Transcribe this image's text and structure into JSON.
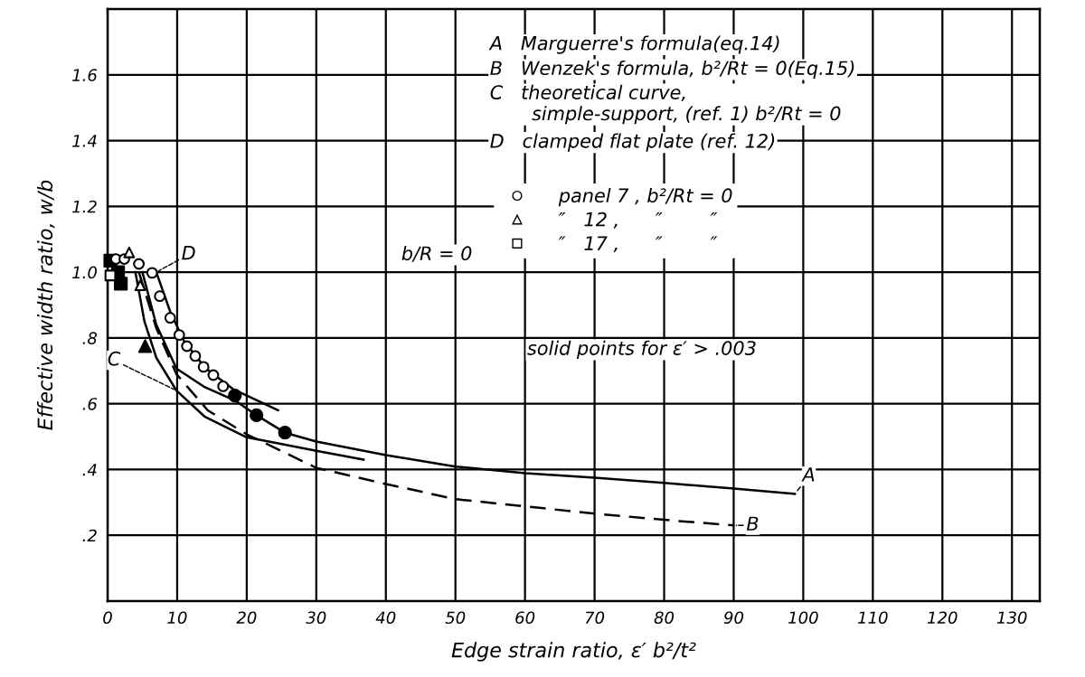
{
  "chart_data": {
    "type": "line",
    "xlabel": "Edge strain ratio, ε′ b²/t²",
    "ylabel": "Effective width ratio, w/b",
    "xlim": [
      0,
      134
    ],
    "ylim": [
      0,
      1.8
    ],
    "xticks": [
      0,
      10,
      20,
      30,
      40,
      50,
      60,
      70,
      80,
      90,
      100,
      110,
      120,
      130
    ],
    "yticks": [
      {
        "value": 0.2,
        "label": ".2"
      },
      {
        "value": 0.4,
        "label": ".4"
      },
      {
        "value": 0.6,
        "label": ".6"
      },
      {
        "value": 0.8,
        "label": ".8"
      },
      {
        "value": 1.0,
        "label": "1.0"
      },
      {
        "value": 1.2,
        "label": "1.2"
      },
      {
        "value": 1.4,
        "label": "1.4"
      },
      {
        "value": 1.6,
        "label": "1.6"
      }
    ],
    "grid": true,
    "legend": "right",
    "series": [
      {
        "color": "#000000",
        "line_style": "solid",
        "x": [
          5,
          7,
          9.9,
          14,
          18.3,
          21.4,
          25.5,
          30,
          40,
          50,
          60,
          70,
          80,
          90,
          98.8
        ],
        "values": [
          1.0,
          0.84,
          0.707,
          0.65,
          0.61,
          0.565,
          0.512,
          0.485,
          0.444,
          0.409,
          0.389,
          0.375,
          0.359,
          0.342,
          0.326
        ]
      },
      {
        "color": "#000000",
        "line_style": "dashed",
        "x": [
          4.5,
          7,
          9.9,
          14.4,
          20,
          30,
          40,
          50,
          60,
          70,
          80,
          90
        ],
        "values": [
          1.0,
          0.83,
          0.69,
          0.58,
          0.507,
          0.405,
          0.356,
          0.31,
          0.288,
          0.266,
          0.247,
          0.23
        ]
      },
      {
        "color": "#000000",
        "line_style": "solid",
        "x": [
          4,
          5.3,
          7,
          9.9,
          14,
          20,
          30,
          36.8
        ],
        "values": [
          1.0,
          0.85,
          0.74,
          0.64,
          0.56,
          0.498,
          0.457,
          0.43
        ]
      },
      {
        "color": "#000000",
        "line_style": "solid",
        "x": [
          7,
          9,
          11,
          14,
          18,
          24.5
        ],
        "values": [
          1.0,
          0.88,
          0.79,
          0.71,
          0.645,
          0.58
        ]
      },
      {
        "type": "scatter",
        "name": "panel 7 , b²/Rt = 0",
        "color": "#000000",
        "marker": "circle",
        "x": [
          1.2,
          2.4,
          4.5,
          6.4,
          7.5,
          9.0,
          10.3,
          11.4,
          12.6,
          13.8,
          15.2,
          16.6
        ],
        "values": [
          1.04,
          1.04,
          1.025,
          0.998,
          0.927,
          0.861,
          0.809,
          0.775,
          0.745,
          0.712,
          0.687,
          0.653
        ]
      },
      {
        "type": "scatter",
        "name": "″   12 ,      ″        ″",
        "color": "#000000",
        "marker": "triangle",
        "x": [
          3.1,
          4.7
        ],
        "values": [
          1.06,
          0.96
        ]
      },
      {
        "type": "scatter",
        "name": "″   17 ,      ″        ″",
        "color": "#000000",
        "marker": "square",
        "x": [
          0.4
        ],
        "values": [
          0.99
        ]
      },
      {
        "type": "scatter",
        "color": "#000000",
        "marker": "circle",
        "x": [
          18.3,
          21.4,
          25.5
        ],
        "values": [
          0.625,
          0.565,
          0.512
        ]
      },
      {
        "type": "scatter",
        "color": "#000000",
        "marker": "triangle",
        "x": [
          5.4
        ],
        "values": [
          0.775
        ]
      },
      {
        "type": "scatter",
        "color": "#000000",
        "marker": "square",
        "x": [
          0.4,
          1.5,
          1.9
        ],
        "values": [
          1.035,
          1.0,
          0.965
        ]
      }
    ],
    "annotations": [
      "A   Marguerre's formula(eq.14)",
      "B   Wenzek's formula, b²/Rt = 0(Eq.15)",
      "C   theoretical curve,\n       simple-support, (ref. 1) b²/Rt = 0",
      "D   clamped flat plate (ref. 12)",
      "b/R = 0",
      "solid points for ε′ > .003",
      {
        "text": "A",
        "x": 98.8,
        "y": 0.326
      },
      {
        "text": "B",
        "x": 90,
        "y": 0.23
      },
      {
        "text": "C",
        "x": 9.9,
        "y": 0.64
      },
      {
        "text": "D",
        "x": 7,
        "y": 1.0
      }
    ]
  }
}
